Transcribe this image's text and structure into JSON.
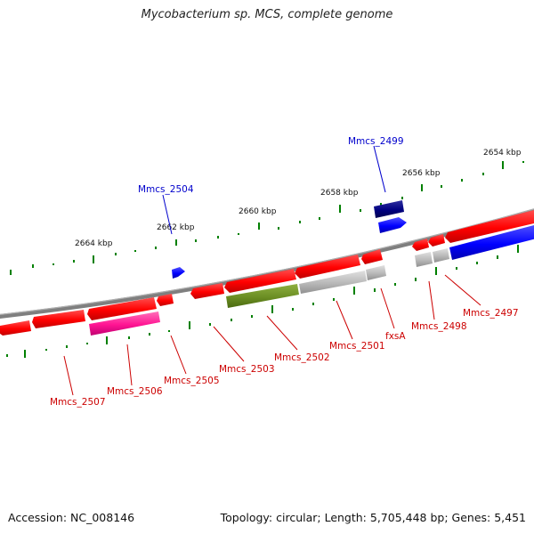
{
  "title": "Mycobacterium sp. MCS, complete genome",
  "footer": {
    "accession": "Accession: NC_008146",
    "summary": "Topology: circular; Length: 5,705,448 bp; Genes: 5,451"
  },
  "scale_labels": [
    "2654 kbp",
    "2656 kbp",
    "2658 kbp",
    "2660 kbp",
    "2662 kbp",
    "2664 kbp"
  ],
  "gene_labels_top": [
    "Mmcs_2499",
    "Mmcs_2504"
  ],
  "gene_labels_bottom": [
    "Mmcs_2497",
    "Mmcs_2498",
    "fxsA",
    "Mmcs_2501",
    "Mmcs_2502",
    "Mmcs_2503",
    "Mmcs_2505",
    "Mmcs_2506",
    "Mmcs_2507"
  ],
  "colors": {
    "backbone": "#808080",
    "gene_red": "#ff0000",
    "gene_blue": "#0000ff",
    "gene_navy": "#000080",
    "gene_grey": "#b8b8b8",
    "gene_olive": "#6b8e23",
    "gene_pink": "#ff1493",
    "ticks": "#008000",
    "label_red": "#cc0000",
    "label_blue": "#0000cc"
  }
}
